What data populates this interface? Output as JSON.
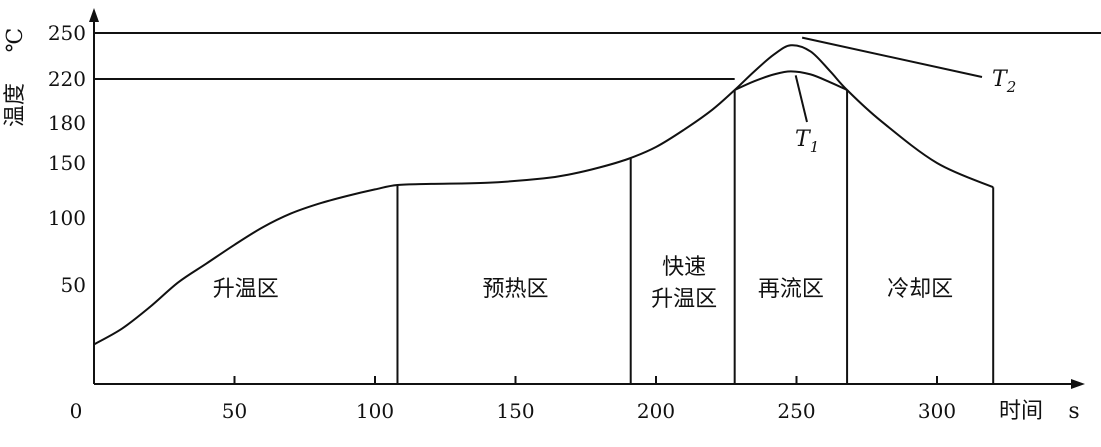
{
  "chart_data": {
    "type": "line",
    "title": "",
    "xlabel": "时间",
    "x_unit": "s",
    "ylabel": "温度",
    "y_unit": "℃",
    "x_ticks": [
      0,
      50,
      100,
      150,
      200,
      250,
      300
    ],
    "y_ticks": [
      50,
      100,
      150,
      180,
      220,
      250
    ],
    "xlim": [
      0,
      360
    ],
    "grid": false,
    "series": [
      {
        "name": "",
        "x": [
          0,
          10,
          20,
          30,
          40,
          50,
          60,
          70,
          80,
          90,
          100,
          108,
          120,
          140,
          160,
          170,
          180,
          190,
          200,
          210,
          220,
          228,
          235,
          242,
          248,
          255,
          262,
          268,
          280,
          300,
          320
        ],
        "y": [
          20,
          28,
          39,
          52,
          66,
          80,
          93,
          104,
          113,
          120,
          126,
          130,
          131,
          132,
          136,
          140,
          146,
          153,
          162,
          175,
          192,
          210,
          225,
          236,
          242,
          238,
          225,
          210,
          182,
          150,
          128
        ]
      },
      {
        "name": "",
        "x": [
          228,
          235,
          242,
          248,
          255,
          262,
          268
        ],
        "y": [
          210,
          218,
          223,
          225,
          223,
          217,
          210
        ]
      }
    ],
    "hlines": [
      250,
      220
    ],
    "zone_boundaries": [
      108,
      191,
      228,
      268,
      320
    ],
    "zones": [
      {
        "lines": [
          "升温区"
        ],
        "x": 54
      },
      {
        "lines": [
          "预热区"
        ],
        "x": 150
      },
      {
        "lines": [
          "快速",
          "升温区"
        ],
        "x": 210
      },
      {
        "lines": [
          "再流区"
        ],
        "x": 248
      },
      {
        "lines": [
          "冷却区"
        ],
        "x": 294
      }
    ],
    "annotations": [
      {
        "label": "T",
        "sub": "1",
        "x": 249,
        "y": 225
      },
      {
        "label": "T",
        "sub": "2",
        "x": 252,
        "y": 247
      }
    ]
  }
}
